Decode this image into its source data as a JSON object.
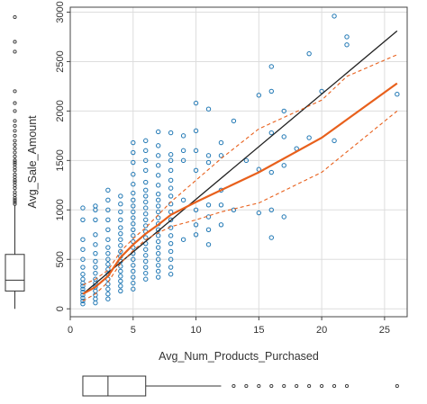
{
  "chart_data": {
    "type": "scatter",
    "title": "",
    "xlabel": "Avg_Num_Products_Purchased",
    "ylabel": "Avg_Sale_Amount",
    "xlim": [
      0,
      26.8
    ],
    "ylim": [
      -80,
      3050
    ],
    "xticks": [
      0,
      5,
      10,
      15,
      20,
      25
    ],
    "yticks": [
      0,
      500,
      1000,
      1500,
      2000,
      2500,
      3000
    ],
    "grid": true,
    "legend": "none",
    "colors": {
      "points": "#1f77b4",
      "linear_fit": "#222222",
      "smooth_fit": "#e8601c",
      "grid": "#dddddd",
      "frame": "#444444"
    },
    "series": [
      {
        "kind": "points",
        "points": [
          [
            1,
            50
          ],
          [
            1,
            80
          ],
          [
            1,
            110
          ],
          [
            1,
            140
          ],
          [
            1,
            170
          ],
          [
            1,
            200
          ],
          [
            1,
            230
          ],
          [
            1,
            260
          ],
          [
            1,
            300
          ],
          [
            1,
            350
          ],
          [
            1,
            420
          ],
          [
            1,
            500
          ],
          [
            1,
            600
          ],
          [
            1,
            700
          ],
          [
            1,
            900
          ],
          [
            1,
            1020
          ],
          [
            2,
            60
          ],
          [
            2,
            100
          ],
          [
            2,
            140
          ],
          [
            2,
            180
          ],
          [
            2,
            220
          ],
          [
            2,
            260
          ],
          [
            2,
            300
          ],
          [
            2,
            360
          ],
          [
            2,
            420
          ],
          [
            2,
            480
          ],
          [
            2,
            560
          ],
          [
            2,
            650
          ],
          [
            2,
            750
          ],
          [
            2,
            900
          ],
          [
            2,
            1000
          ],
          [
            2,
            1040
          ],
          [
            3,
            100
          ],
          [
            3,
            150
          ],
          [
            3,
            200
          ],
          [
            3,
            250
          ],
          [
            3,
            300
          ],
          [
            3,
            350
          ],
          [
            3,
            400
          ],
          [
            3,
            450
          ],
          [
            3,
            500
          ],
          [
            3,
            560
          ],
          [
            3,
            620
          ],
          [
            3,
            700
          ],
          [
            3,
            800
          ],
          [
            3,
            900
          ],
          [
            3,
            1000
          ],
          [
            3,
            1100
          ],
          [
            3,
            1200
          ],
          [
            4,
            180
          ],
          [
            4,
            230
          ],
          [
            4,
            280
          ],
          [
            4,
            330
          ],
          [
            4,
            380
          ],
          [
            4,
            430
          ],
          [
            4,
            480
          ],
          [
            4,
            530
          ],
          [
            4,
            580
          ],
          [
            4,
            640
          ],
          [
            4,
            700
          ],
          [
            4,
            760
          ],
          [
            4,
            820
          ],
          [
            4,
            900
          ],
          [
            4,
            980
          ],
          [
            4,
            1060
          ],
          [
            4,
            1140
          ],
          [
            5,
            200
          ],
          [
            5,
            260
          ],
          [
            5,
            320
          ],
          [
            5,
            380
          ],
          [
            5,
            440
          ],
          [
            5,
            500
          ],
          [
            5,
            560
          ],
          [
            5,
            620
          ],
          [
            5,
            680
          ],
          [
            5,
            740
          ],
          [
            5,
            800
          ],
          [
            5,
            860
          ],
          [
            5,
            920
          ],
          [
            5,
            980
          ],
          [
            5,
            1040
          ],
          [
            5,
            1100
          ],
          [
            5,
            1170
          ],
          [
            5,
            1260
          ],
          [
            5,
            1360
          ],
          [
            5,
            1480
          ],
          [
            5,
            1580
          ],
          [
            5,
            1680
          ],
          [
            6,
            300
          ],
          [
            6,
            360
          ],
          [
            6,
            420
          ],
          [
            6,
            480
          ],
          [
            6,
            540
          ],
          [
            6,
            600
          ],
          [
            6,
            660
          ],
          [
            6,
            720
          ],
          [
            6,
            780
          ],
          [
            6,
            840
          ],
          [
            6,
            900
          ],
          [
            6,
            960
          ],
          [
            6,
            1020
          ],
          [
            6,
            1080
          ],
          [
            6,
            1140
          ],
          [
            6,
            1200
          ],
          [
            6,
            1280
          ],
          [
            6,
            1400
          ],
          [
            6,
            1500
          ],
          [
            6,
            1600
          ],
          [
            6,
            1700
          ],
          [
            7,
            320
          ],
          [
            7,
            380
          ],
          [
            7,
            440
          ],
          [
            7,
            500
          ],
          [
            7,
            560
          ],
          [
            7,
            620
          ],
          [
            7,
            680
          ],
          [
            7,
            740
          ],
          [
            7,
            800
          ],
          [
            7,
            860
          ],
          [
            7,
            920
          ],
          [
            7,
            980
          ],
          [
            7,
            1040
          ],
          [
            7,
            1100
          ],
          [
            7,
            1160
          ],
          [
            7,
            1250
          ],
          [
            7,
            1350
          ],
          [
            7,
            1450
          ],
          [
            7,
            1550
          ],
          [
            7,
            1650
          ],
          [
            7,
            1790
          ],
          [
            8,
            350
          ],
          [
            8,
            420
          ],
          [
            8,
            500
          ],
          [
            8,
            580
          ],
          [
            8,
            660
          ],
          [
            8,
            740
          ],
          [
            8,
            820
          ],
          [
            8,
            900
          ],
          [
            8,
            980
          ],
          [
            8,
            1060
          ],
          [
            8,
            1140
          ],
          [
            8,
            1220
          ],
          [
            8,
            1300
          ],
          [
            8,
            1400
          ],
          [
            8,
            1500
          ],
          [
            8,
            1560
          ],
          [
            8,
            1780
          ],
          [
            9,
            700
          ],
          [
            9,
            1100
          ],
          [
            9,
            1500
          ],
          [
            9,
            1600
          ],
          [
            9,
            1750
          ],
          [
            10,
            750
          ],
          [
            10,
            850
          ],
          [
            10,
            1000
          ],
          [
            10,
            1400
          ],
          [
            10,
            1600
          ],
          [
            10,
            1800
          ],
          [
            10,
            2080
          ],
          [
            11,
            650
          ],
          [
            11,
            800
          ],
          [
            11,
            930
          ],
          [
            11,
            1050
          ],
          [
            11,
            1480
          ],
          [
            11,
            1550
          ],
          [
            11,
            2020
          ],
          [
            12,
            850
          ],
          [
            12,
            1050
          ],
          [
            12,
            1200
          ],
          [
            12,
            1550
          ],
          [
            12,
            1680
          ],
          [
            13,
            1000
          ],
          [
            13,
            1900
          ],
          [
            14,
            1500
          ],
          [
            15,
            970
          ],
          [
            15,
            1410
          ],
          [
            15,
            2160
          ],
          [
            16,
            720
          ],
          [
            16,
            1000
          ],
          [
            16,
            1380
          ],
          [
            16,
            1780
          ],
          [
            16,
            2200
          ],
          [
            16,
            2450
          ],
          [
            17,
            930
          ],
          [
            17,
            1450
          ],
          [
            17,
            1740
          ],
          [
            17,
            2000
          ],
          [
            18,
            1620
          ],
          [
            19,
            1730
          ],
          [
            19,
            2580
          ],
          [
            20,
            2200
          ],
          [
            21,
            1700
          ],
          [
            21,
            2960
          ],
          [
            22,
            2670
          ],
          [
            22,
            2750
          ],
          [
            26,
            2170
          ]
        ]
      },
      {
        "kind": "linear_fit",
        "points": [
          [
            1,
            150
          ],
          [
            26,
            2810
          ]
        ]
      },
      {
        "kind": "smooth_fit",
        "points": [
          [
            1,
            150
          ],
          [
            2,
            220
          ],
          [
            3,
            330
          ],
          [
            4,
            520
          ],
          [
            5,
            650
          ],
          [
            6,
            760
          ],
          [
            7,
            850
          ],
          [
            8,
            950
          ],
          [
            10,
            1080
          ],
          [
            12,
            1200
          ],
          [
            15,
            1380
          ],
          [
            20,
            1730
          ],
          [
            26,
            2280
          ]
        ]
      },
      {
        "kind": "smooth_upper",
        "points": [
          [
            1,
            240
          ],
          [
            2,
            300
          ],
          [
            3,
            390
          ],
          [
            4,
            580
          ],
          [
            5,
            710
          ],
          [
            6,
            820
          ],
          [
            7,
            950
          ],
          [
            8,
            1080
          ],
          [
            10,
            1300
          ],
          [
            12,
            1520
          ],
          [
            15,
            1820
          ],
          [
            20,
            2110
          ],
          [
            22,
            2350
          ],
          [
            26,
            2570
          ]
        ]
      },
      {
        "kind": "smooth_lower",
        "points": [
          [
            1,
            80
          ],
          [
            2,
            150
          ],
          [
            3,
            270
          ],
          [
            4,
            460
          ],
          [
            5,
            590
          ],
          [
            6,
            700
          ],
          [
            7,
            770
          ],
          [
            8,
            830
          ],
          [
            10,
            900
          ],
          [
            12,
            980
          ],
          [
            15,
            1070
          ],
          [
            20,
            1380
          ],
          [
            26,
            2000
          ]
        ]
      }
    ],
    "marginal_y_boxplot": {
      "q1": 180,
      "median": 290,
      "q3": 550,
      "whisker_low": 0,
      "whisker_high": 1050,
      "outliers": [
        1060,
        1080,
        1100,
        1120,
        1150,
        1180,
        1220,
        1250,
        1280,
        1300,
        1330,
        1360,
        1400,
        1430,
        1460,
        1480,
        1500,
        1540,
        1580,
        1620,
        1660,
        1700,
        1750,
        1800,
        1850,
        1900,
        2000,
        2080,
        2200,
        2600,
        2700,
        2950
      ]
    },
    "marginal_x_boxplot": {
      "q1": 1,
      "median": 3,
      "q3": 6,
      "whisker_low": 1,
      "whisker_high": 12,
      "outliers": [
        13,
        14,
        15,
        16,
        17,
        18,
        19,
        20,
        21,
        22,
        26
      ]
    }
  }
}
